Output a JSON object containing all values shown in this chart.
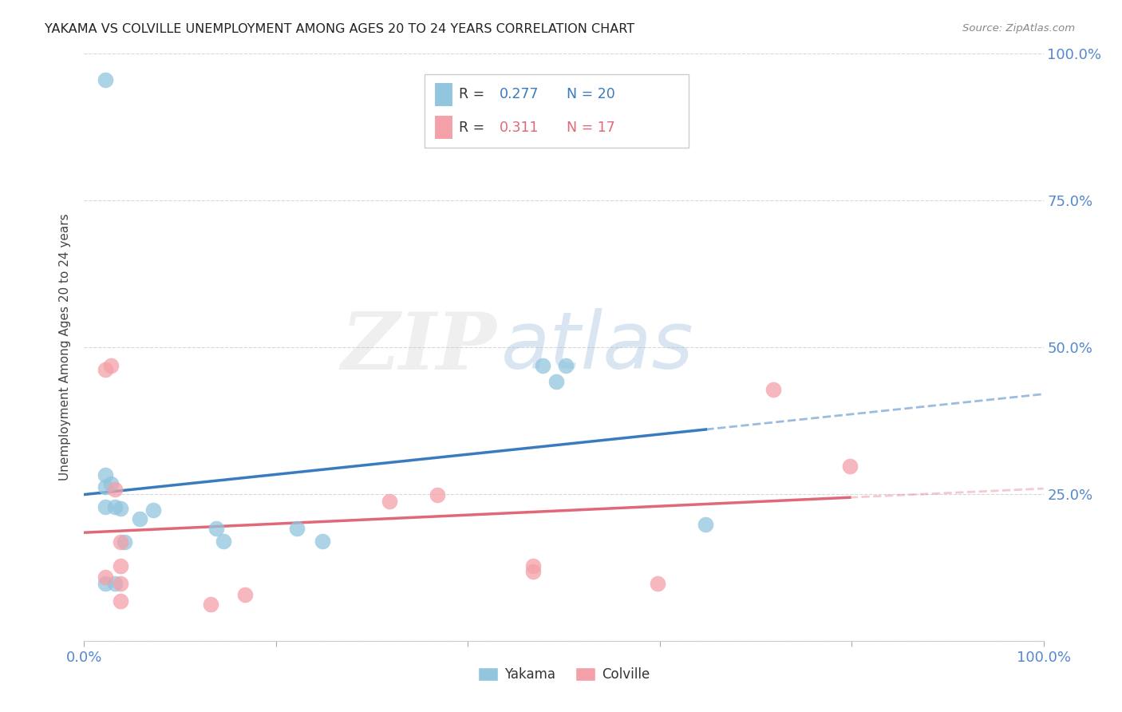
{
  "title": "YAKAMA VS COLVILLE UNEMPLOYMENT AMONG AGES 20 TO 24 YEARS CORRELATION CHART",
  "source": "Source: ZipAtlas.com",
  "ylabel": "Unemployment Among Ages 20 to 24 years",
  "xlim": [
    0.0,
    1.0
  ],
  "ylim": [
    0.0,
    1.0
  ],
  "xticks": [
    0.0,
    0.2,
    0.4,
    0.6,
    0.8,
    1.0
  ],
  "yticks": [
    0.0,
    0.25,
    0.5,
    0.75,
    1.0
  ],
  "yakama_color": "#92c5de",
  "colville_color": "#f4a0a8",
  "yakama_line_color": "#3a7bbf",
  "colville_line_color": "#e06878",
  "tick_color": "#5588cc",
  "background_color": "#ffffff",
  "grid_color": "#d8d8d8",
  "legend_R_yakama": "0.277",
  "legend_N_yakama": "20",
  "legend_R_colville": "0.311",
  "legend_N_colville": "17",
  "yakama_x": [
    0.022,
    0.022,
    0.022,
    0.022,
    0.028,
    0.032,
    0.032,
    0.038,
    0.042,
    0.058,
    0.072,
    0.138,
    0.145,
    0.222,
    0.248,
    0.478,
    0.492,
    0.502,
    0.648,
    0.022
  ],
  "yakama_y": [
    0.955,
    0.262,
    0.228,
    0.098,
    0.268,
    0.228,
    0.098,
    0.225,
    0.168,
    0.208,
    0.222,
    0.192,
    0.17,
    0.192,
    0.17,
    0.468,
    0.442,
    0.468,
    0.198,
    0.282
  ],
  "colville_x": [
    0.022,
    0.022,
    0.028,
    0.032,
    0.038,
    0.038,
    0.038,
    0.038,
    0.132,
    0.168,
    0.318,
    0.368,
    0.468,
    0.468,
    0.598,
    0.718,
    0.798
  ],
  "colville_y": [
    0.462,
    0.108,
    0.468,
    0.258,
    0.168,
    0.128,
    0.098,
    0.068,
    0.062,
    0.078,
    0.238,
    0.248,
    0.128,
    0.118,
    0.098,
    0.428,
    0.298
  ]
}
